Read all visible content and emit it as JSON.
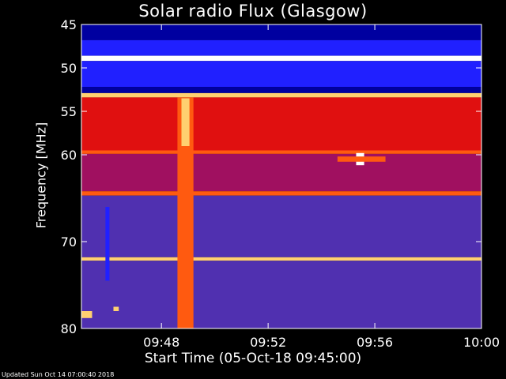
{
  "chart_data": {
    "type": "heatmap",
    "title": "Solar radio Flux (Glasgow)",
    "xlabel": "Start Time (05-Oct-18 09:45:00)",
    "ylabel": "Frequency [MHz]",
    "x_range_minutes": [
      "09:45",
      "10:00"
    ],
    "ylim": [
      45,
      80
    ],
    "y_inverted": true,
    "x_ticks": [
      "09:48",
      "09:52",
      "09:56",
      "10:00"
    ],
    "x_tick_minutes": [
      3,
      7,
      11,
      15
    ],
    "y_ticks": [
      45,
      50,
      55,
      60,
      70,
      80
    ],
    "colormap": [
      "#0000a0",
      "#2020ff",
      "#5030b0",
      "#a01060",
      "#e01010",
      "#ff5a10",
      "#ffd070",
      "#ffffff"
    ],
    "bands": [
      {
        "f0": 45,
        "f1": 46.8,
        "level": 0
      },
      {
        "f0": 46.8,
        "f1": 48.6,
        "level": 1
      },
      {
        "f0": 48.6,
        "f1": 49.2,
        "level": 7
      },
      {
        "f0": 49.2,
        "f1": 52.2,
        "level": 1
      },
      {
        "f0": 52.2,
        "f1": 52.9,
        "level": 0
      },
      {
        "f0": 52.9,
        "f1": 53.4,
        "level": 6
      },
      {
        "f0": 53.4,
        "f1": 59.5,
        "level": 4
      },
      {
        "f0": 59.5,
        "f1": 59.9,
        "level": 5
      },
      {
        "f0": 59.9,
        "f1": 64.2,
        "level": 3
      },
      {
        "f0": 64.2,
        "f1": 64.7,
        "level": 5
      },
      {
        "f0": 64.7,
        "f1": 71.8,
        "level": 2
      },
      {
        "f0": 71.8,
        "f1": 72.2,
        "level": 6
      },
      {
        "f0": 72.2,
        "f1": 80,
        "level": 2
      }
    ],
    "events": [
      {
        "t0": 3.6,
        "t1": 4.2,
        "f0": 53.4,
        "f1": 80,
        "level": 5
      },
      {
        "t0": 3.75,
        "t1": 4.05,
        "f0": 53.5,
        "f1": 59,
        "level": 6
      },
      {
        "t0": 10.3,
        "t1": 10.6,
        "f0": 59.8,
        "f1": 61.2,
        "level": 7
      },
      {
        "t0": 9.6,
        "t1": 11.4,
        "f0": 60.2,
        "f1": 60.8,
        "level": 5
      },
      {
        "t0": 0.9,
        "t1": 1.05,
        "f0": 66,
        "f1": 74.5,
        "level": 1
      },
      {
        "t0": 1.2,
        "t1": 1.4,
        "f0": 77.5,
        "f1": 78,
        "level": 6
      },
      {
        "t0": 0,
        "t1": 0.4,
        "f0": 78,
        "f1": 78.8,
        "level": 6
      }
    ]
  },
  "footer": "Updated Sun Oct 14 07:00:40 2018"
}
